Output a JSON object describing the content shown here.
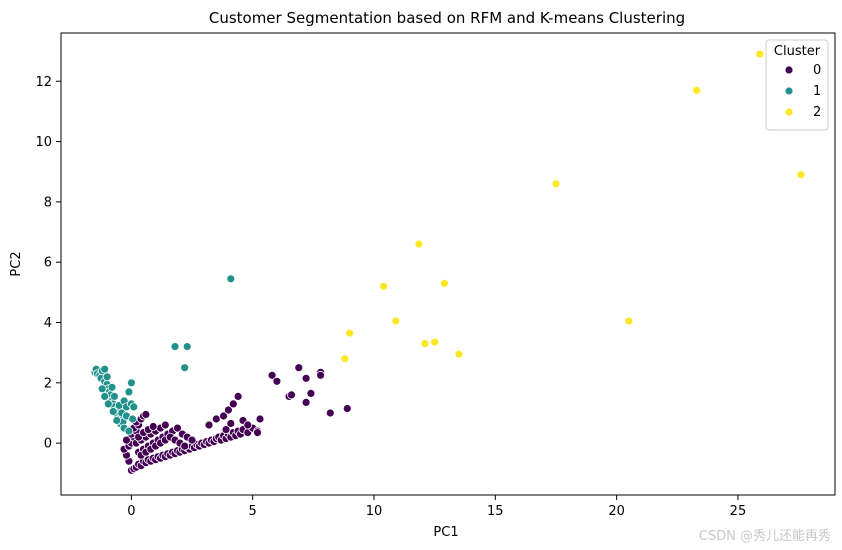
{
  "chart_data": {
    "type": "scatter",
    "title": "Customer Segmentation based on RFM and K-means Clustering",
    "xlabel": "PC1",
    "ylabel": "PC2",
    "xlim": [
      -2.9,
      29.0
    ],
    "ylim": [
      -1.72,
      13.6
    ],
    "xticks": [
      0,
      5,
      10,
      15,
      20,
      25
    ],
    "yticks": [
      0,
      2,
      4,
      6,
      8,
      10,
      12
    ],
    "grid": false,
    "legend": {
      "title": "Cluster",
      "placement": "top-right",
      "entries": [
        "0",
        "1",
        "2"
      ]
    },
    "series": [
      {
        "name": "0",
        "color": "#440154",
        "points": [
          [
            0.0,
            -0.9
          ],
          [
            0.1,
            -0.85
          ],
          [
            0.2,
            -0.8
          ],
          [
            0.3,
            -0.7
          ],
          [
            0.4,
            -0.75
          ],
          [
            0.5,
            -0.6
          ],
          [
            0.6,
            -0.65
          ],
          [
            0.7,
            -0.55
          ],
          [
            0.8,
            -0.6
          ],
          [
            0.9,
            -0.5
          ],
          [
            1.0,
            -0.55
          ],
          [
            1.1,
            -0.45
          ],
          [
            1.2,
            -0.5
          ],
          [
            1.3,
            -0.4
          ],
          [
            1.4,
            -0.45
          ],
          [
            1.5,
            -0.35
          ],
          [
            1.6,
            -0.4
          ],
          [
            1.7,
            -0.3
          ],
          [
            1.8,
            -0.35
          ],
          [
            1.9,
            -0.25
          ],
          [
            2.0,
            -0.3
          ],
          [
            2.1,
            -0.2
          ],
          [
            2.2,
            -0.25
          ],
          [
            2.3,
            -0.15
          ],
          [
            2.4,
            -0.2
          ],
          [
            2.5,
            -0.1
          ],
          [
            2.6,
            -0.15
          ],
          [
            2.7,
            -0.05
          ],
          [
            2.8,
            -0.1
          ],
          [
            2.9,
            0.0
          ],
          [
            3.0,
            -0.05
          ],
          [
            3.1,
            0.05
          ],
          [
            3.2,
            0.0
          ],
          [
            3.3,
            0.1
          ],
          [
            3.4,
            0.05
          ],
          [
            3.5,
            0.15
          ],
          [
            3.6,
            0.2
          ],
          [
            3.7,
            0.1
          ],
          [
            3.8,
            0.25
          ],
          [
            3.9,
            0.15
          ],
          [
            4.0,
            0.3
          ],
          [
            4.1,
            0.2
          ],
          [
            4.2,
            0.35
          ],
          [
            4.3,
            0.25
          ],
          [
            4.4,
            0.4
          ],
          [
            4.5,
            0.3
          ],
          [
            4.6,
            0.45
          ],
          [
            4.8,
            0.35
          ],
          [
            5.0,
            0.5
          ],
          [
            5.2,
            0.4
          ],
          [
            -0.1,
            -0.6
          ],
          [
            -0.2,
            -0.4
          ],
          [
            -0.3,
            -0.2
          ],
          [
            -0.1,
            -0.1
          ],
          [
            0.0,
            0.0
          ],
          [
            -0.2,
            0.1
          ],
          [
            0.1,
            0.2
          ],
          [
            0.0,
            0.3
          ],
          [
            0.2,
            0.4
          ],
          [
            0.1,
            0.5
          ],
          [
            0.3,
            0.6
          ],
          [
            0.2,
            0.7
          ],
          [
            0.4,
            0.8
          ],
          [
            0.5,
            0.9
          ],
          [
            0.6,
            0.95
          ],
          [
            0.3,
            -0.3
          ],
          [
            0.5,
            -0.2
          ],
          [
            0.7,
            -0.1
          ],
          [
            0.9,
            0.0
          ],
          [
            1.1,
            0.1
          ],
          [
            1.3,
            0.2
          ],
          [
            1.5,
            0.3
          ],
          [
            1.7,
            0.4
          ],
          [
            1.9,
            0.5
          ],
          [
            2.1,
            0.3
          ],
          [
            2.3,
            0.2
          ],
          [
            2.5,
            0.1
          ],
          [
            0.4,
            -0.4
          ],
          [
            0.6,
            -0.3
          ],
          [
            0.8,
            -0.2
          ],
          [
            1.0,
            -0.1
          ],
          [
            1.2,
            0.0
          ],
          [
            1.4,
            0.1
          ],
          [
            1.6,
            0.2
          ],
          [
            1.8,
            0.1
          ],
          [
            2.0,
            0.0
          ],
          [
            2.2,
            -0.1
          ],
          [
            0.2,
            0.0
          ],
          [
            0.4,
            0.1
          ],
          [
            0.6,
            0.2
          ],
          [
            0.8,
            0.3
          ],
          [
            1.0,
            0.4
          ],
          [
            1.2,
            0.5
          ],
          [
            1.4,
            0.6
          ],
          [
            0.3,
            0.2
          ],
          [
            0.5,
            0.35
          ],
          [
            0.7,
            0.45
          ],
          [
            0.9,
            0.55
          ],
          [
            3.2,
            0.6
          ],
          [
            3.5,
            0.8
          ],
          [
            3.8,
            0.9
          ],
          [
            4.0,
            1.1
          ],
          [
            4.2,
            1.3
          ],
          [
            4.4,
            1.55
          ],
          [
            4.6,
            0.75
          ],
          [
            4.8,
            0.6
          ],
          [
            5.3,
            0.8
          ],
          [
            5.2,
            0.35
          ],
          [
            4.1,
            0.65
          ],
          [
            3.9,
            0.45
          ],
          [
            5.8,
            2.25
          ],
          [
            6.0,
            2.05
          ],
          [
            6.5,
            1.55
          ],
          [
            6.6,
            1.6
          ],
          [
            6.9,
            2.5
          ],
          [
            7.2,
            2.15
          ],
          [
            7.4,
            1.65
          ],
          [
            7.8,
            2.35
          ],
          [
            7.2,
            1.35
          ],
          [
            7.8,
            2.25
          ],
          [
            8.2,
            1.0
          ],
          [
            8.9,
            1.15
          ]
        ]
      },
      {
        "name": "1",
        "color": "#21918c",
        "points": [
          [
            -1.5,
            2.35
          ],
          [
            -1.45,
            2.45
          ],
          [
            -1.4,
            2.3
          ],
          [
            -1.3,
            2.25
          ],
          [
            -1.25,
            2.15
          ],
          [
            -1.2,
            2.4
          ],
          [
            -1.1,
            2.45
          ],
          [
            -1.1,
            2.05
          ],
          [
            -1.0,
            1.95
          ],
          [
            -1.0,
            2.2
          ],
          [
            -0.95,
            1.8
          ],
          [
            -0.9,
            1.7
          ],
          [
            -0.9,
            1.5
          ],
          [
            -0.85,
            1.6
          ],
          [
            -0.8,
            1.4
          ],
          [
            -0.8,
            1.85
          ],
          [
            -0.75,
            1.3
          ],
          [
            -0.7,
            1.2
          ],
          [
            -0.7,
            1.55
          ],
          [
            -0.65,
            1.0
          ],
          [
            -0.6,
            1.1
          ],
          [
            -0.55,
            0.9
          ],
          [
            -0.5,
            0.8
          ],
          [
            -0.5,
            1.25
          ],
          [
            -0.45,
            0.65
          ],
          [
            -0.4,
            1.0
          ],
          [
            -0.35,
            0.7
          ],
          [
            -0.3,
            1.4
          ],
          [
            -0.3,
            0.5
          ],
          [
            -0.2,
            1.2
          ],
          [
            -0.2,
            0.9
          ],
          [
            -0.1,
            1.7
          ],
          [
            -0.1,
            0.4
          ],
          [
            0.0,
            2.0
          ],
          [
            0.0,
            1.3
          ],
          [
            0.05,
            0.8
          ],
          [
            0.1,
            1.2
          ],
          [
            -1.2,
            1.8
          ],
          [
            -1.1,
            1.55
          ],
          [
            -0.95,
            1.3
          ],
          [
            -0.75,
            1.05
          ],
          [
            -0.6,
            0.75
          ],
          [
            1.8,
            3.2
          ],
          [
            2.3,
            3.2
          ],
          [
            2.2,
            2.5
          ],
          [
            4.1,
            5.45
          ]
        ]
      },
      {
        "name": "2",
        "color": "#fde725",
        "points": [
          [
            8.8,
            2.8
          ],
          [
            9.0,
            3.65
          ],
          [
            10.4,
            5.2
          ],
          [
            10.9,
            4.05
          ],
          [
            11.85,
            6.6
          ],
          [
            12.1,
            3.3
          ],
          [
            12.5,
            3.35
          ],
          [
            12.9,
            5.3
          ],
          [
            13.5,
            2.95
          ],
          [
            17.5,
            8.6
          ],
          [
            20.5,
            4.05
          ],
          [
            23.3,
            11.7
          ],
          [
            25.9,
            12.9
          ],
          [
            27.6,
            8.9
          ]
        ]
      }
    ]
  },
  "watermark": "CSDN @秀儿还能再秀"
}
